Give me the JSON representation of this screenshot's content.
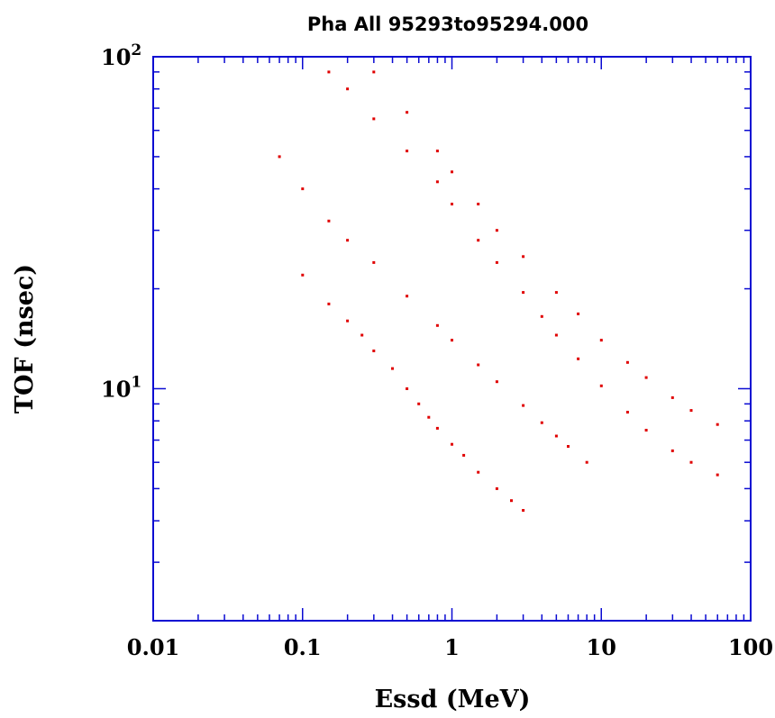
{
  "chart_data": {
    "type": "scatter",
    "title": "Pha All 95293to95294.000",
    "xlabel": "Essd (MeV)",
    "ylabel": "TOF (nsec)",
    "x_scale": "log",
    "y_scale": "log",
    "xlim": [
      0.01,
      100
    ],
    "ylim": [
      2,
      100
    ],
    "x_tick_labels": [
      "0.01",
      "0.1",
      "1",
      "10",
      "100"
    ],
    "x_tick_values": [
      0.01,
      0.1,
      1,
      10,
      100
    ],
    "y_tick_labels": [
      {
        "base": "10",
        "exp": "2",
        "value": 100
      },
      {
        "base": "10",
        "exp": "1",
        "value": 10
      }
    ],
    "grid": false,
    "colors": {
      "points": "#e00000",
      "axes": "#0a0ad2"
    },
    "series": [
      {
        "x": [
          0.1,
          0.15,
          0.2,
          0.25,
          0.3,
          0.4,
          0.5,
          0.6,
          0.7,
          0.8,
          1.0,
          1.2,
          1.5,
          2.0,
          2.5,
          3.0
        ],
        "y": [
          22,
          18,
          16,
          14.5,
          13,
          11.5,
          10,
          9,
          8.2,
          7.6,
          6.8,
          6.3,
          5.6,
          5.0,
          4.6,
          4.3
        ]
      },
      {
        "x": [
          0.07,
          0.1,
          0.15,
          0.2,
          0.3,
          0.5,
          0.8,
          1.0,
          1.5,
          2.0,
          3.0,
          4.0,
          5.0,
          6.0,
          8.0
        ],
        "y": [
          50,
          40,
          32,
          28,
          24,
          19,
          15.5,
          14,
          11.8,
          10.5,
          8.9,
          7.9,
          7.2,
          6.7,
          6.0
        ]
      },
      {
        "x": [
          0.15,
          0.2,
          0.3,
          0.5,
          0.8,
          1.0,
          1.5,
          2.0,
          3.0,
          4.0,
          5.0,
          7.0,
          10,
          15,
          20,
          30,
          40,
          60
        ],
        "y": [
          90,
          80,
          65,
          52,
          42,
          36,
          28,
          24,
          19.5,
          16.5,
          14.5,
          12.3,
          10.2,
          8.5,
          7.5,
          6.5,
          6.0,
          5.5
        ]
      },
      {
        "x": [
          0.3,
          0.5,
          0.8,
          1.0,
          1.5,
          2.0,
          3.0,
          5.0,
          7.0,
          10,
          15,
          20,
          30,
          40,
          60
        ],
        "y": [
          90,
          68,
          52,
          45,
          36,
          30,
          25,
          19.5,
          16.8,
          14,
          12,
          10.8,
          9.4,
          8.6,
          7.8
        ]
      }
    ]
  }
}
